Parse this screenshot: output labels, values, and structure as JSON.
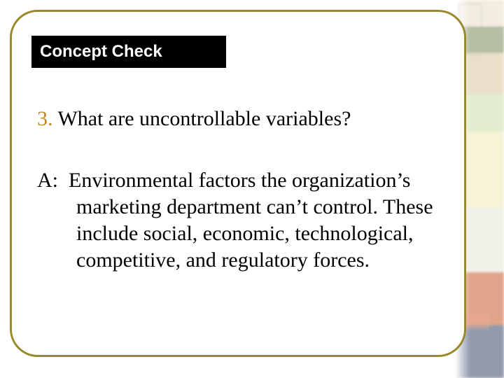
{
  "colors": {
    "card_border": "#99892b",
    "concept_bg": "#000000",
    "concept_text": "#ffffff",
    "q_number": "#c08820",
    "body_text": "#000000",
    "slide_bg": "#ffffff"
  },
  "typography": {
    "heading_family": "Arial, Helvetica, sans-serif",
    "heading_weight": "bold",
    "heading_size_pt": 18,
    "body_family": "Times New Roman, Times, serif",
    "body_size_pt": 22
  },
  "concept_check": {
    "label": "Concept Check"
  },
  "question": {
    "number": "3.",
    "text": "What are uncontrollable variables?"
  },
  "answer": {
    "label": "A:",
    "text": "Environmental factors the organization’s marketing department can’t control.  These include social, economic, technological, competitive, and regulatory forces."
  }
}
